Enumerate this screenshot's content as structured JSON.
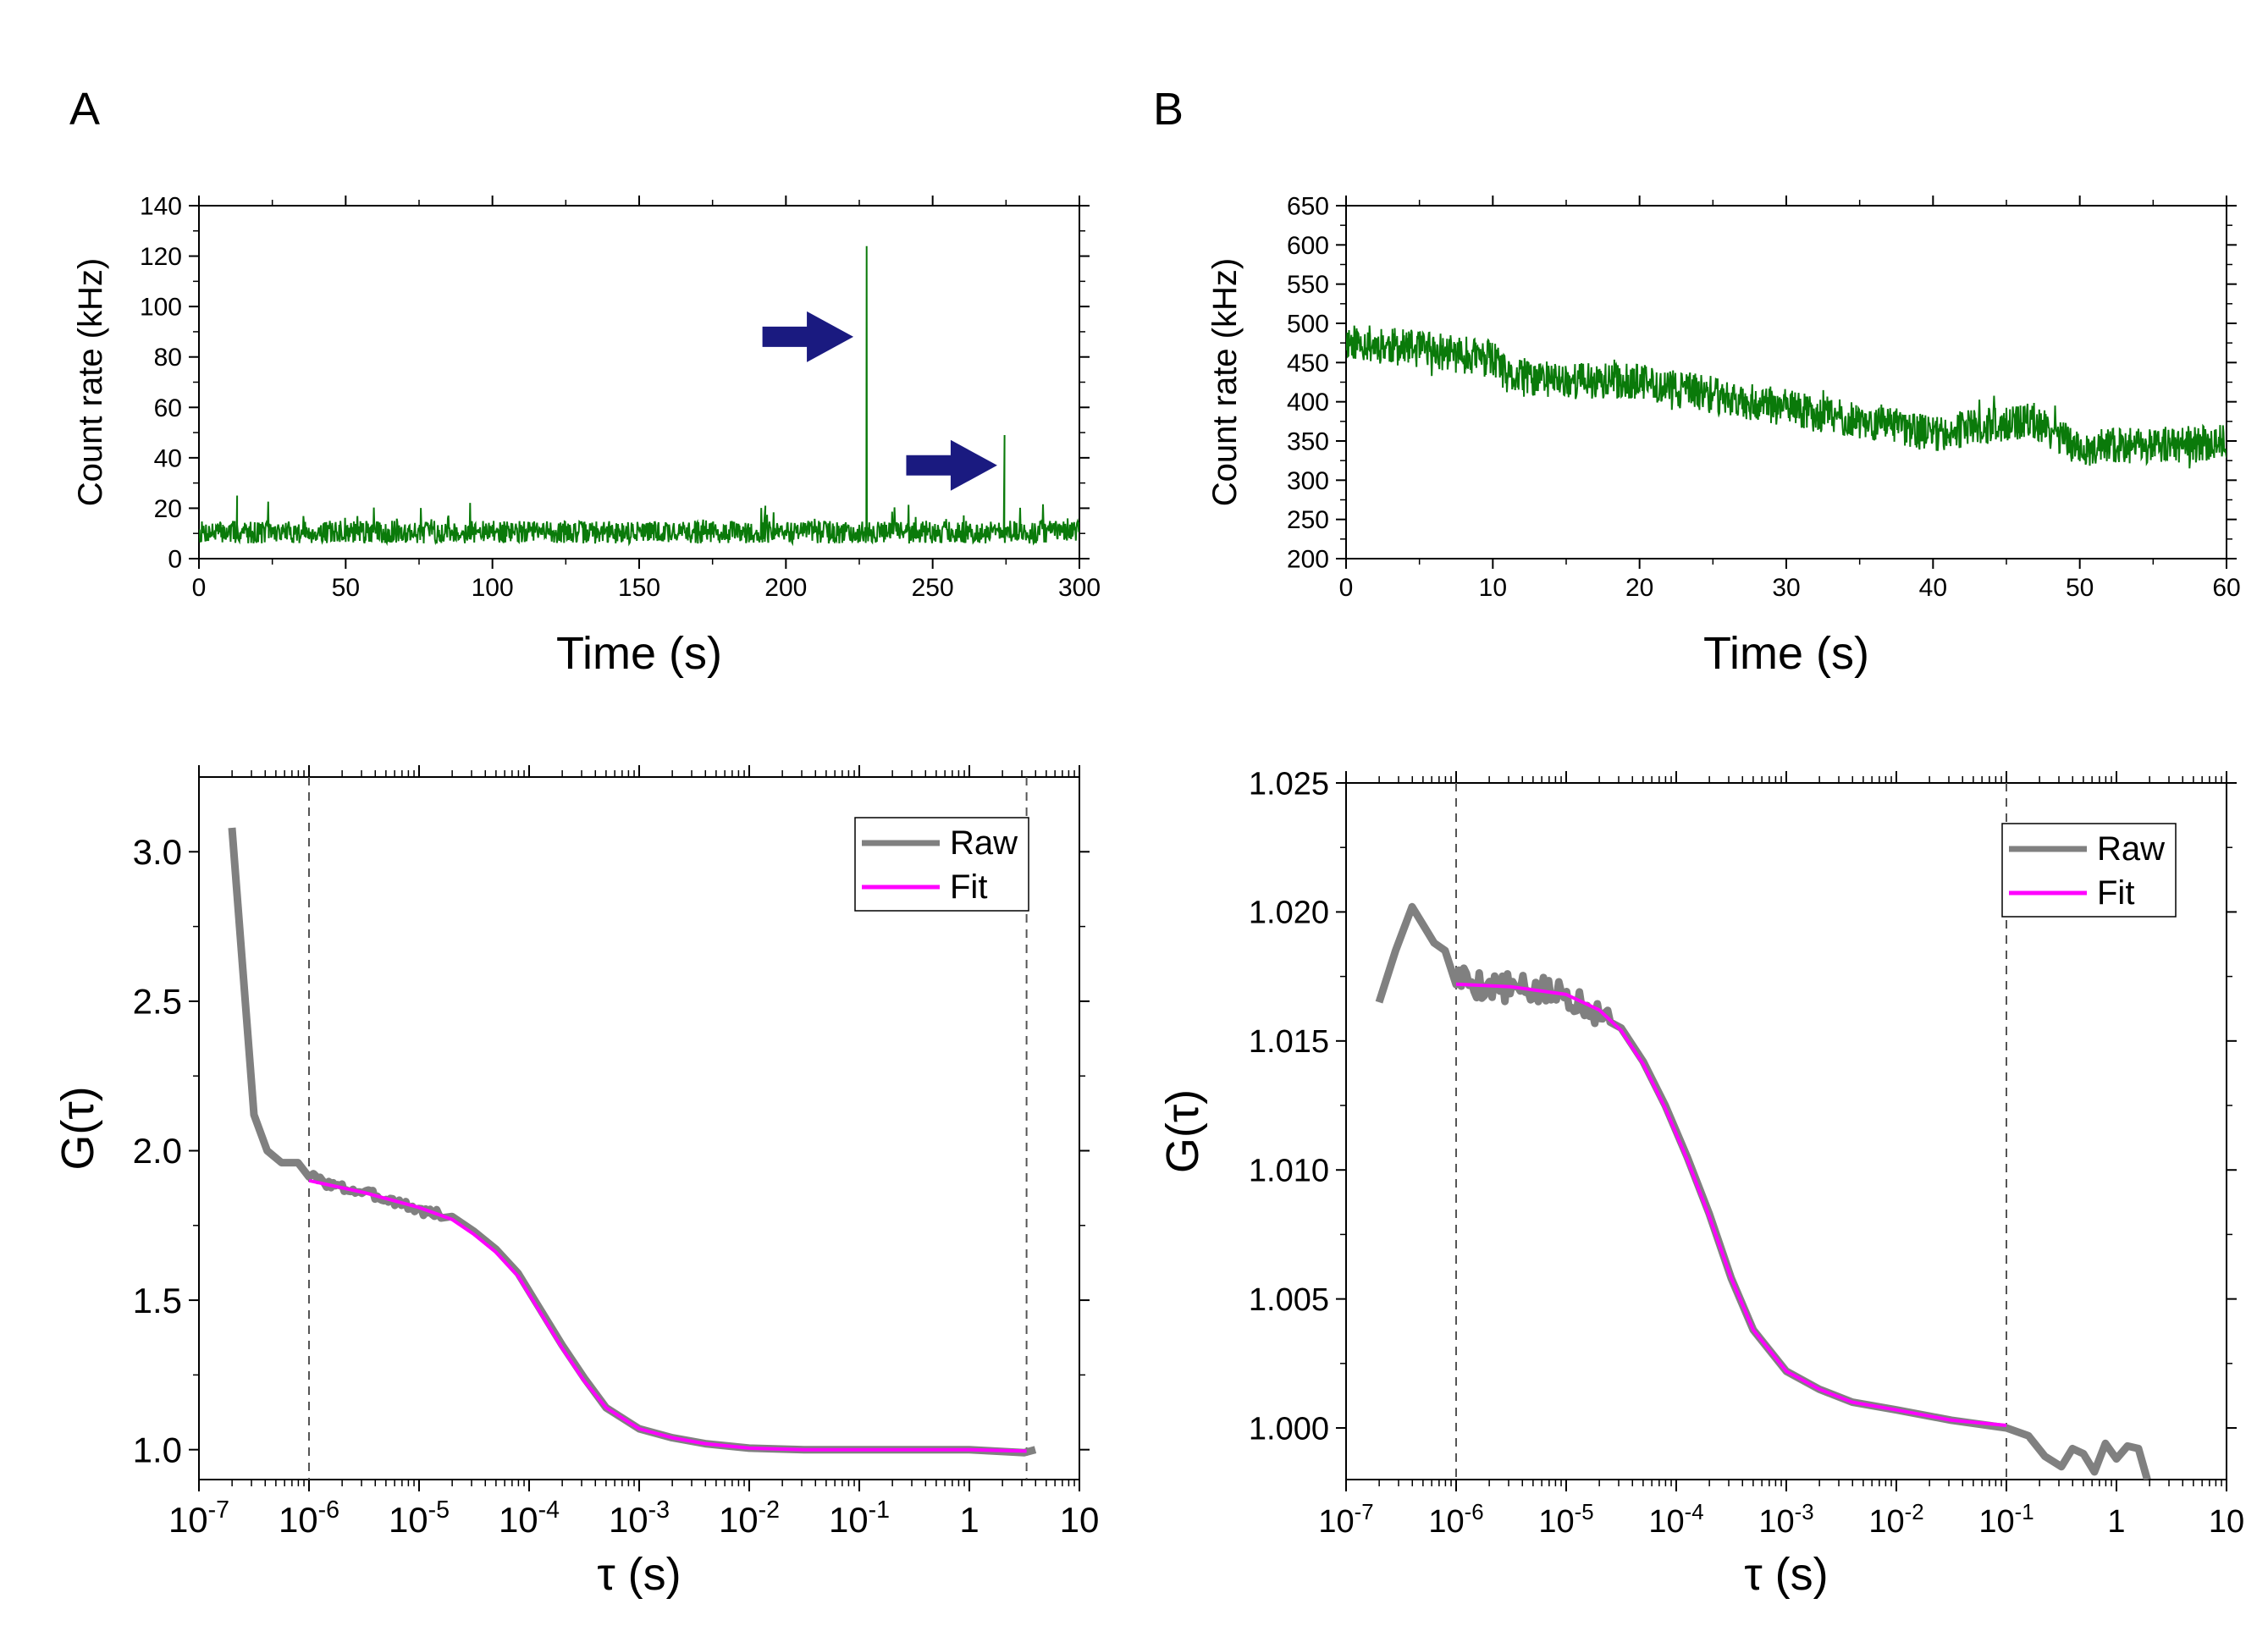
{
  "figure": {
    "panel_labels": [
      "A",
      "B"
    ]
  },
  "chart_data": [
    {
      "id": "A-top",
      "type": "line",
      "panel": "A",
      "xlabel": "Time (s)",
      "ylabel": "Count rate (kHz)",
      "xlim": [
        0,
        300
      ],
      "ylim": [
        0,
        140
      ],
      "xticks": [
        0,
        50,
        100,
        150,
        200,
        250,
        300
      ],
      "yticks": [
        0,
        20,
        40,
        60,
        80,
        100,
        120,
        140
      ],
      "xscale": "linear",
      "color": "#0a7a0a",
      "series": [
        {
          "name": "count rate",
          "noise": {
            "n": 1500,
            "mean": 10.5,
            "amp": 4.5,
            "spike_amp": 8,
            "seed": 7,
            "x_range": [
              0,
              300
            ]
          },
          "spikes": [
            {
              "x": 227.5,
              "y": 124
            },
            {
              "x": 274.5,
              "y": 49
            },
            {
              "x": 13,
              "y": 25
            },
            {
              "x": 193,
              "y": 21
            }
          ]
        }
      ],
      "annotations": [
        {
          "type": "arrow",
          "tip": [
            223,
            88
          ],
          "tail_x": 192,
          "color": "#1a1a80",
          "label": "arrow-1"
        },
        {
          "type": "arrow",
          "tip": [
            272,
            37
          ],
          "tail_x": 241,
          "color": "#1a1a80",
          "label": "arrow-2"
        }
      ]
    },
    {
      "id": "B-top",
      "type": "line",
      "panel": "B",
      "xlabel": "Time (s)",
      "ylabel": "Count rate (kHz)",
      "xlim": [
        0,
        60
      ],
      "ylim": [
        200,
        650
      ],
      "xticks": [
        0,
        10,
        20,
        30,
        40,
        50,
        60
      ],
      "yticks": [
        200,
        250,
        300,
        350,
        400,
        450,
        500,
        550,
        600,
        650
      ],
      "xscale": "linear",
      "color": "#0a7a0a",
      "series": [
        {
          "name": "count rate",
          "noise": {
            "n": 1500,
            "amp": 24,
            "seed": 11,
            "x_range": [
              0,
              60
            ]
          },
          "trend": [
            [
              0,
              478
            ],
            [
              10,
              455
            ],
            [
              11,
              430
            ],
            [
              20,
              425
            ],
            [
              30,
              392
            ],
            [
              40,
              360
            ],
            [
              47,
              375
            ],
            [
              50,
              340
            ],
            [
              60,
              348
            ]
          ]
        }
      ]
    },
    {
      "id": "A-bottom",
      "type": "line",
      "panel": "A",
      "xlabel": "τ (s)",
      "ylabel": "G(τ)",
      "xscale": "log",
      "xlim_exp": [
        -7,
        1
      ],
      "ylim": [
        0.9,
        3.25
      ],
      "xtick_labels": [
        "10-7",
        "10-6",
        "10-5",
        "10-4",
        "10-3",
        "10-2",
        "10-1",
        "1",
        "10"
      ],
      "yticks": [
        1.0,
        1.5,
        2.0,
        2.5,
        3.0
      ],
      "ytick_labels": [
        "1.0",
        "1.5",
        "2.0",
        "2.5",
        "3.0"
      ],
      "vlines_exp": [
        -6,
        0.52
      ],
      "legend": [
        "Raw",
        "Fit"
      ],
      "legend_position": "top-right",
      "series": [
        {
          "name": "Raw",
          "color": "#808080",
          "points_exp": [
            [
              -6.7,
              3.08
            ],
            [
              -6.6,
              2.6
            ],
            [
              -6.5,
              2.12
            ],
            [
              -6.38,
              2.0
            ],
            [
              -6.25,
              1.96
            ],
            [
              -6.1,
              1.96
            ],
            [
              -6.0,
              1.92
            ],
            [
              -5.9,
              1.9
            ],
            [
              -5.75,
              1.88
            ],
            [
              -5.5,
              1.86
            ],
            [
              -5.2,
              1.83
            ],
            [
              -5.0,
              1.8
            ],
            [
              -4.7,
              1.78
            ],
            [
              -4.5,
              1.73
            ],
            [
              -4.3,
              1.67
            ],
            [
              -4.1,
              1.59
            ],
            [
              -3.9,
              1.47
            ],
            [
              -3.7,
              1.35
            ],
            [
              -3.5,
              1.24
            ],
            [
              -3.3,
              1.14
            ],
            [
              -3.0,
              1.07
            ],
            [
              -2.7,
              1.04
            ],
            [
              -2.4,
              1.02
            ],
            [
              -2.0,
              1.005
            ],
            [
              -1.5,
              1.0
            ],
            [
              -1.0,
              1.0
            ],
            [
              0.0,
              1.0
            ],
            [
              0.5,
              0.99
            ],
            [
              0.6,
              1.0
            ]
          ],
          "wiggle": {
            "from_exp": -6.0,
            "to_exp": -4.8,
            "amp": 0.015,
            "n": 60,
            "seed": 3
          }
        },
        {
          "name": "Fit",
          "color": "#ff00ff",
          "points_exp": [
            [
              -6.0,
              1.9
            ],
            [
              -5.5,
              1.86
            ],
            [
              -5.0,
              1.81
            ],
            [
              -4.7,
              1.77
            ],
            [
              -4.5,
              1.72
            ],
            [
              -4.3,
              1.66
            ],
            [
              -4.1,
              1.58
            ],
            [
              -3.9,
              1.46
            ],
            [
              -3.7,
              1.34
            ],
            [
              -3.5,
              1.23
            ],
            [
              -3.3,
              1.14
            ],
            [
              -3.0,
              1.07
            ],
            [
              -2.7,
              1.04
            ],
            [
              -2.4,
              1.02
            ],
            [
              -2.0,
              1.005
            ],
            [
              -1.5,
              1.0
            ],
            [
              0.0,
              1.0
            ],
            [
              0.52,
              0.995
            ]
          ]
        }
      ]
    },
    {
      "id": "B-bottom",
      "type": "line",
      "panel": "B",
      "xlabel": "τ (s)",
      "ylabel": "G(τ)",
      "xscale": "log",
      "xlim_exp": [
        -7,
        1
      ],
      "ylim": [
        0.998,
        1.025
      ],
      "xtick_labels": [
        "10-7",
        "10-6",
        "10-5",
        "10-4",
        "10-3",
        "10-2",
        "10-1",
        "1",
        "10"
      ],
      "yticks": [
        1.0,
        1.005,
        1.01,
        1.015,
        1.02,
        1.025
      ],
      "ytick_labels": [
        "1.000",
        "1.005",
        "1.010",
        "1.015",
        "1.020",
        "1.025"
      ],
      "vlines_exp": [
        -6,
        -1
      ],
      "legend": [
        "Raw",
        "Fit"
      ],
      "legend_position": "top-right",
      "series": [
        {
          "name": "Raw",
          "color": "#808080",
          "points_exp": [
            [
              -6.7,
              1.0165
            ],
            [
              -6.55,
              1.0185
            ],
            [
              -6.4,
              1.0202
            ],
            [
              -6.3,
              1.0195
            ],
            [
              -6.2,
              1.0188
            ],
            [
              -6.1,
              1.0185
            ],
            [
              -6.0,
              1.0175
            ],
            [
              -5.8,
              1.0172
            ],
            [
              -5.5,
              1.017
            ],
            [
              -5.0,
              1.0168
            ],
            [
              -4.7,
              1.0162
            ],
            [
              -4.5,
              1.0155
            ],
            [
              -4.3,
              1.0142
            ],
            [
              -4.1,
              1.0125
            ],
            [
              -3.9,
              1.0105
            ],
            [
              -3.7,
              1.0083
            ],
            [
              -3.5,
              1.0058
            ],
            [
              -3.3,
              1.0038
            ],
            [
              -3.0,
              1.0022
            ],
            [
              -2.7,
              1.0015
            ],
            [
              -2.4,
              1.001
            ],
            [
              -2.0,
              1.0007
            ],
            [
              -1.5,
              1.0003
            ],
            [
              -1.0,
              1.0
            ],
            [
              -0.8,
              0.9997
            ],
            [
              -0.65,
              0.9989
            ],
            [
              -0.5,
              0.9985
            ],
            [
              -0.4,
              0.9992
            ],
            [
              -0.3,
              0.999
            ],
            [
              -0.2,
              0.9983
            ],
            [
              -0.1,
              0.9994
            ],
            [
              0.0,
              0.9988
            ],
            [
              0.1,
              0.9993
            ],
            [
              0.2,
              0.9992
            ],
            [
              0.28,
              0.998
            ]
          ],
          "wiggle": {
            "from_exp": -6.0,
            "to_exp": -4.6,
            "amp": 0.0006,
            "n": 60,
            "seed": 5
          }
        },
        {
          "name": "Fit",
          "color": "#ff00ff",
          "points_exp": [
            [
              -6.0,
              1.0172
            ],
            [
              -5.5,
              1.0171
            ],
            [
              -5.0,
              1.0168
            ],
            [
              -4.7,
              1.0162
            ],
            [
              -4.5,
              1.0154
            ],
            [
              -4.3,
              1.0141
            ],
            [
              -4.1,
              1.0124
            ],
            [
              -3.9,
              1.0104
            ],
            [
              -3.7,
              1.0082
            ],
            [
              -3.5,
              1.0058
            ],
            [
              -3.3,
              1.0038
            ],
            [
              -3.0,
              1.0022
            ],
            [
              -2.7,
              1.0015
            ],
            [
              -2.4,
              1.001
            ],
            [
              -2.0,
              1.0007
            ],
            [
              -1.5,
              1.0003
            ],
            [
              -1.0,
              1.0001
            ]
          ]
        }
      ]
    }
  ]
}
